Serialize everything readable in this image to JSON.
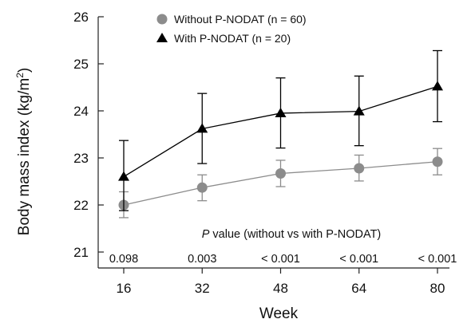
{
  "chart_data": {
    "type": "line",
    "xlabel": "Week",
    "ylabel_main": "Body mass index (kg/m",
    "ylabel_sup": "2",
    "ylabel_close": ")",
    "x": [
      16,
      32,
      48,
      64,
      80
    ],
    "x_tick_labels": [
      "16",
      "32",
      "48",
      "64",
      "80"
    ],
    "ylim": [
      21,
      26
    ],
    "y_ticks": [
      21,
      22,
      23,
      24,
      25,
      26
    ],
    "y_tick_labels": [
      "21",
      "22",
      "23",
      "24",
      "25",
      "26"
    ],
    "series": [
      {
        "name": "Without P-NODAT (n = 60)",
        "marker": "circle",
        "color": "#8c8c8c",
        "values": [
          22.0,
          22.37,
          22.67,
          22.78,
          22.92
        ],
        "err_low": [
          21.73,
          22.09,
          22.39,
          22.51,
          22.64
        ],
        "err_high": [
          22.28,
          22.64,
          22.95,
          23.06,
          23.2
        ]
      },
      {
        "name": "With P-NODAT (n = 20)",
        "marker": "triangle",
        "color": "#000000",
        "values": [
          22.6,
          23.62,
          23.95,
          23.99,
          24.52
        ],
        "err_low": [
          21.88,
          22.88,
          23.21,
          23.26,
          23.77
        ],
        "err_high": [
          23.37,
          24.37,
          24.7,
          24.74,
          25.28
        ]
      }
    ],
    "pvalue_title_italic": "P",
    "pvalue_title_rest": " value (without vs with P-NODAT)",
    "pvalues": [
      "0.098",
      "0.003",
      "< 0.001",
      "< 0.001",
      "< 0.001"
    ],
    "legend_position": "top-left"
  }
}
